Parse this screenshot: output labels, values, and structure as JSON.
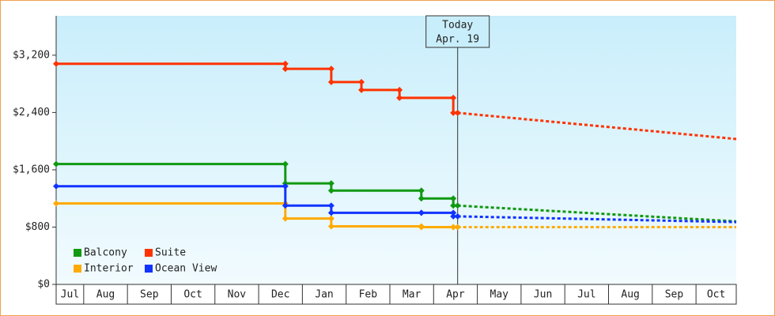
{
  "chart_data": {
    "type": "step-line",
    "ylim": [
      0,
      3750
    ],
    "yticks": [
      {
        "value": 0,
        "label": "$0"
      },
      {
        "value": 800,
        "label": "$800"
      },
      {
        "value": 1600,
        "label": "$1,600"
      },
      {
        "value": 2400,
        "label": "$2,400"
      },
      {
        "value": 3200,
        "label": "$3,200"
      }
    ],
    "xlim": [
      0.37,
      15.92
    ],
    "xticks": [
      1,
      2,
      3,
      4,
      5,
      6,
      7,
      8,
      9,
      10,
      11,
      12,
      13,
      14,
      15
    ],
    "categories": [
      "Jul",
      "Aug",
      "Sep",
      "Oct",
      "Nov",
      "Dec",
      "Jan",
      "Feb",
      "Mar",
      "Apr",
      "May",
      "Jun",
      "Jul",
      "Aug",
      "Sep",
      "Oct"
    ],
    "today": {
      "x": 9.55,
      "label": [
        "Today",
        "Apr. 19"
      ]
    },
    "legend": "lower-left",
    "series": [
      {
        "name": "Balcony",
        "color": "#119911",
        "x": [
          0.37,
          5.61,
          6.66,
          8.72,
          9.45,
          9.55
        ],
        "values": [
          1680,
          1410,
          1310,
          1200,
          1100,
          1100
        ],
        "forecast": {
          "x": [
            9.55,
            15.92
          ],
          "values": [
            1100,
            880
          ]
        }
      },
      {
        "name": "Suite",
        "color": "#ff3300",
        "x": [
          0.37,
          5.61,
          6.66,
          7.35,
          8.22,
          9.45,
          9.55
        ],
        "values": [
          3080,
          3010,
          2825,
          2715,
          2605,
          2395,
          2395
        ],
        "forecast": {
          "x": [
            9.55,
            15.92
          ],
          "values": [
            2395,
            2030
          ]
        }
      },
      {
        "name": "Interior",
        "color": "#ffaa00",
        "x": [
          0.37,
          5.61,
          6.66,
          8.72,
          9.45,
          9.55
        ],
        "values": [
          1130,
          920,
          810,
          800,
          800,
          800
        ],
        "forecast": {
          "x": [
            9.55,
            15.92
          ],
          "values": [
            800,
            800
          ]
        }
      },
      {
        "name": "Ocean View",
        "color": "#1133ff",
        "x": [
          0.37,
          5.61,
          6.66,
          8.72,
          9.45,
          9.55
        ],
        "values": [
          1370,
          1100,
          1000,
          1000,
          950,
          950
        ],
        "forecast": {
          "x": [
            9.55,
            15.92
          ],
          "values": [
            950,
            870
          ]
        }
      }
    ]
  }
}
